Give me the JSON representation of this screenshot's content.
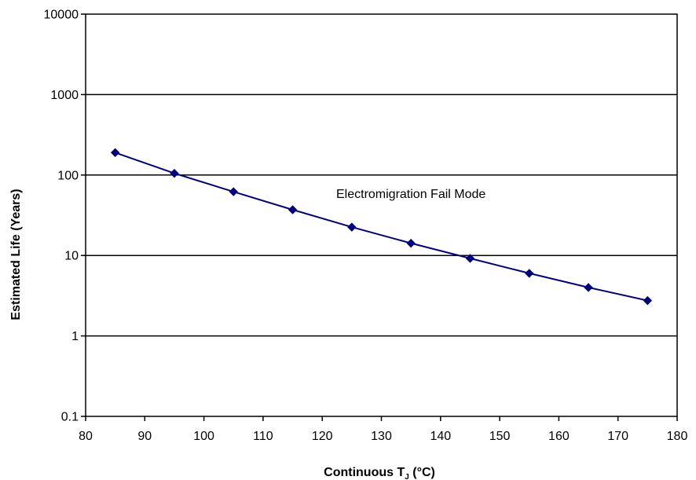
{
  "chart_data": {
    "type": "line",
    "title": "",
    "xlabel": "Continuous T",
    "xlabel_sub": "J",
    "xlabel_unit": " (°C)",
    "ylabel": "Estimated Life (Years)",
    "x_scale": "linear",
    "y_scale": "log",
    "xlim": [
      80,
      180
    ],
    "ylim": [
      0.1,
      10000
    ],
    "xticks": [
      80,
      90,
      100,
      110,
      120,
      130,
      140,
      150,
      160,
      170,
      180
    ],
    "xtick_labels": [
      "80",
      "90",
      "100",
      "110",
      "120",
      "130",
      "140",
      "150",
      "160",
      "170",
      "180"
    ],
    "yticks": [
      0.1,
      1,
      10,
      100,
      1000,
      10000
    ],
    "ytick_labels": [
      "0.1",
      "1",
      "10",
      "100",
      "1000",
      "10000"
    ],
    "grid": "horizontal major lines",
    "legend": "none",
    "series": [
      {
        "color": "#000080",
        "marker": "diamond",
        "x": [
          85,
          95,
          105,
          115,
          125,
          135,
          145,
          155,
          165,
          175
        ],
        "y": [
          190,
          105,
          62,
          37,
          22.5,
          14.2,
          9.2,
          6.0,
          4.0,
          2.75
        ]
      }
    ],
    "annotations": [
      {
        "text": "Electromigration Fail Mode",
        "x": 135,
        "y": 52
      }
    ]
  }
}
